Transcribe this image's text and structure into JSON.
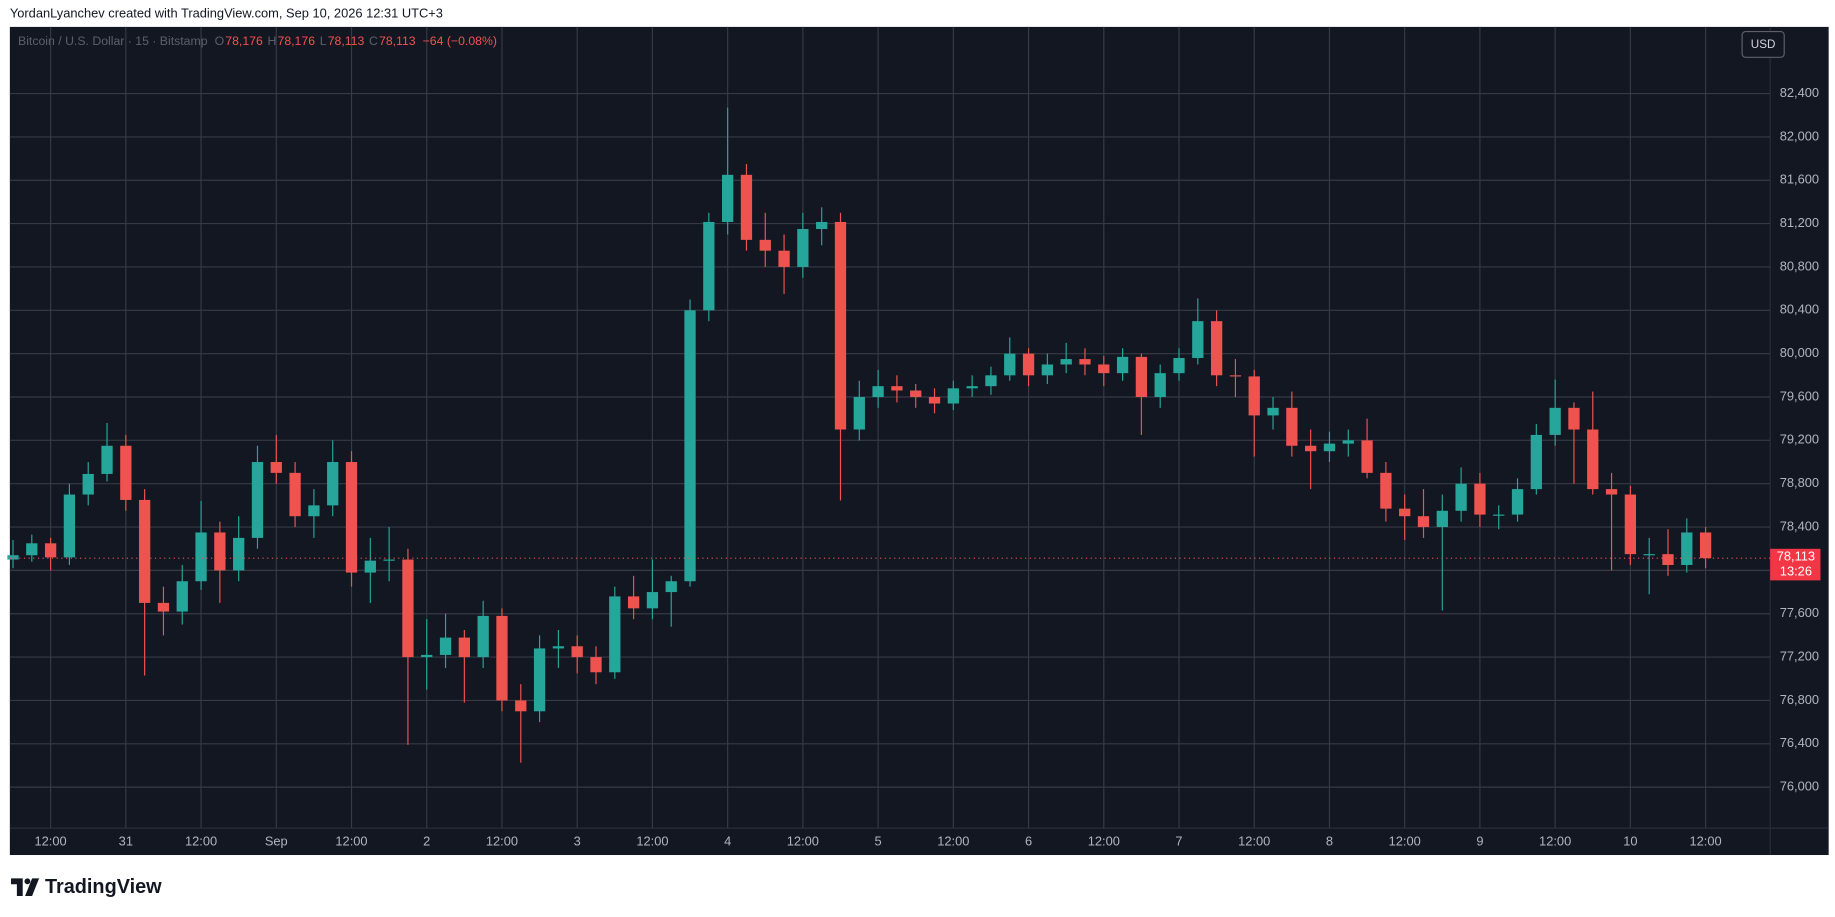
{
  "header": "YordanLyanchev created with TradingView.com, Sep 10, 2026 12:31 UTC+3",
  "brand": "TradingView",
  "chart_data": {
    "type": "candlestick",
    "legend": {
      "symbol": "Bitcoin / U.S. Dollar · 15 · Bitstamp",
      "ohlc": [
        {
          "key": "O",
          "text": "78,176"
        },
        {
          "key": "H",
          "text": "78,176"
        },
        {
          "key": "L",
          "text": "78,113"
        },
        {
          "key": "C",
          "text": "78,113"
        }
      ],
      "change": "−64 (−0.08%)"
    },
    "currency": "USD",
    "last_price": {
      "value": 78113,
      "label": "78,113"
    },
    "countdown": "13:26",
    "up_color": "#26a69a",
    "down_color": "#ef5350",
    "grid": true,
    "x": [
      6,
      9,
      12,
      15,
      18,
      21,
      24,
      27,
      30,
      33,
      36,
      39,
      42,
      45,
      48,
      51,
      54,
      57,
      60,
      63,
      66,
      69,
      72,
      75,
      78,
      81,
      84,
      87,
      90,
      93,
      96,
      99,
      102,
      105,
      108,
      111,
      114,
      117,
      120,
      123,
      126,
      129,
      132,
      135,
      138,
      141,
      144,
      147,
      150,
      153,
      156,
      159,
      162,
      165,
      168,
      171,
      174,
      177,
      180,
      183,
      186,
      189,
      192,
      195,
      198,
      201,
      204,
      207,
      210,
      213,
      216,
      219,
      222,
      225,
      228,
      231,
      234,
      237,
      240,
      243,
      246,
      249,
      252,
      255,
      258,
      261,
      264,
      267,
      270,
      273,
      276
    ],
    "open": [
      78100,
      78140,
      78250,
      78120,
      78700,
      78890,
      79150,
      78650,
      77700,
      77620,
      77900,
      78350,
      78000,
      78300,
      79000,
      78900,
      78500,
      78600,
      79000,
      77980,
      78090,
      78100,
      77200,
      77220,
      77380,
      77200,
      77580,
      76800,
      76700,
      77280,
      77300,
      77200,
      77060,
      77760,
      77650,
      77800,
      77900,
      80400,
      81215,
      81650,
      81050,
      80950,
      80800,
      81150,
      81215,
      79300,
      79600,
      79700,
      79660,
      79600,
      79540,
      79680,
      79700,
      79800,
      80000,
      79800,
      79900,
      79950,
      79900,
      79820,
      79970,
      79600,
      79820,
      79960,
      80300,
      79800,
      79790,
      79430,
      79500,
      79150,
      79100,
      79170,
      79200,
      78900,
      78570,
      78500,
      78400,
      78550,
      78800,
      78515,
      78515,
      78750,
      79250,
      79500,
      79300,
      78750,
      78700,
      78150,
      78150,
      78050,
      78350
    ],
    "high": [
      78280,
      78330,
      78300,
      78800,
      79000,
      79360,
      79250,
      78750,
      77850,
      78050,
      78640,
      78450,
      78500,
      79150,
      79250,
      79000,
      78750,
      79200,
      79100,
      78300,
      78400,
      78200,
      77550,
      77600,
      77450,
      77720,
      77650,
      76950,
      77400,
      77450,
      77400,
      77300,
      77850,
      77950,
      78100,
      77950,
      80500,
      81300,
      82270,
      81750,
      81300,
      81100,
      81300,
      81350,
      81300,
      79750,
      79850,
      79800,
      79720,
      79680,
      79750,
      79800,
      79880,
      80150,
      80050,
      80000,
      80100,
      80050,
      79980,
      80050,
      80000,
      79900,
      80050,
      80510,
      80400,
      79950,
      79850,
      79600,
      79650,
      79300,
      79280,
      79300,
      79400,
      79000,
      78700,
      78750,
      78700,
      78950,
      78900,
      78600,
      78850,
      79350,
      79760,
      79550,
      79650,
      78900,
      78780,
      78300,
      78380,
      78480,
      78400
    ],
    "low": [
      78020,
      78080,
      78000,
      78050,
      78600,
      78820,
      78550,
      77030,
      77400,
      77500,
      77820,
      77700,
      77900,
      78200,
      78800,
      78400,
      78300,
      78500,
      77850,
      77700,
      77900,
      76390,
      76900,
      77100,
      76780,
      77100,
      76700,
      76225,
      76600,
      77100,
      77050,
      76950,
      77000,
      77550,
      77550,
      77480,
      77850,
      80300,
      81100,
      80950,
      80800,
      80550,
      80700,
      81000,
      78645,
      79200,
      79500,
      79550,
      79500,
      79450,
      79480,
      79600,
      79620,
      79750,
      79700,
      79720,
      79820,
      79800,
      79700,
      79750,
      79250,
      79500,
      79750,
      79900,
      79700,
      79600,
      79050,
      79300,
      79050,
      78750,
      79000,
      79050,
      78850,
      78450,
      78280,
      78300,
      77630,
      78450,
      78400,
      78380,
      78450,
      78700,
      79150,
      78800,
      78700,
      78000,
      78050,
      77780,
      77950,
      77980,
      78020
    ],
    "close": [
      78140,
      78250,
      78120,
      78700,
      78890,
      79150,
      78650,
      77700,
      77620,
      77900,
      78350,
      78000,
      78300,
      79000,
      78900,
      78500,
      78600,
      79000,
      77980,
      78090,
      78100,
      77200,
      77220,
      77380,
      77200,
      77580,
      76800,
      76700,
      77280,
      77300,
      77200,
      77060,
      77760,
      77650,
      77800,
      77900,
      80400,
      81215,
      81650,
      81050,
      80950,
      80800,
      81150,
      81215,
      79300,
      79600,
      79700,
      79660,
      79600,
      79540,
      79680,
      79700,
      79800,
      80000,
      79800,
      79900,
      79950,
      79900,
      79820,
      79970,
      79600,
      79820,
      79960,
      80300,
      79800,
      79790,
      79430,
      79500,
      79150,
      79100,
      79170,
      79200,
      78900,
      78570,
      78500,
      78400,
      78550,
      78800,
      78515,
      78515,
      78750,
      79250,
      79500,
      79300,
      78750,
      78700,
      78150,
      78150,
      78050,
      78350,
      78113
    ],
    "xlim": [
      5.5,
      286.3
    ],
    "xticks": [
      {
        "value": 12,
        "label": "12:00"
      },
      {
        "value": 24,
        "label": "31"
      },
      {
        "value": 36,
        "label": "12:00"
      },
      {
        "value": 48,
        "label": "Sep"
      },
      {
        "value": 60,
        "label": "12:00"
      },
      {
        "value": 72,
        "label": "2"
      },
      {
        "value": 84,
        "label": "12:00"
      },
      {
        "value": 96,
        "label": "3"
      },
      {
        "value": 108,
        "label": "12:00"
      },
      {
        "value": 120,
        "label": "4"
      },
      {
        "value": 132,
        "label": "12:00"
      },
      {
        "value": 144,
        "label": "5"
      },
      {
        "value": 156,
        "label": "12:00"
      },
      {
        "value": 168,
        "label": "6"
      },
      {
        "value": 180,
        "label": "12:00"
      },
      {
        "value": 192,
        "label": "7"
      },
      {
        "value": 204,
        "label": "12:00"
      },
      {
        "value": 216,
        "label": "8"
      },
      {
        "value": 228,
        "label": "12:00"
      },
      {
        "value": 240,
        "label": "9"
      },
      {
        "value": 252,
        "label": "12:00"
      },
      {
        "value": 264,
        "label": "10"
      },
      {
        "value": 276,
        "label": "12:00"
      }
    ],
    "ylim": [
      75622,
      83015
    ],
    "yticks": [
      {
        "value": 76000,
        "label": "76,000"
      },
      {
        "value": 76400,
        "label": "76,400"
      },
      {
        "value": 76800,
        "label": "76,800"
      },
      {
        "value": 77200,
        "label": "77,200"
      },
      {
        "value": 77600,
        "label": "77,600"
      },
      {
        "value": 78000,
        "label": "78,000"
      },
      {
        "value": 78400,
        "label": "78,400"
      },
      {
        "value": 78800,
        "label": "78,800"
      },
      {
        "value": 79200,
        "label": "79,200"
      },
      {
        "value": 79600,
        "label": "79,600"
      },
      {
        "value": 80000,
        "label": "80,000"
      },
      {
        "value": 80400,
        "label": "80,400"
      },
      {
        "value": 80800,
        "label": "80,800"
      },
      {
        "value": 81200,
        "label": "81,200"
      },
      {
        "value": 81600,
        "label": "81,600"
      },
      {
        "value": 82000,
        "label": "82,000"
      },
      {
        "value": 82400,
        "label": "82,400"
      }
    ]
  }
}
